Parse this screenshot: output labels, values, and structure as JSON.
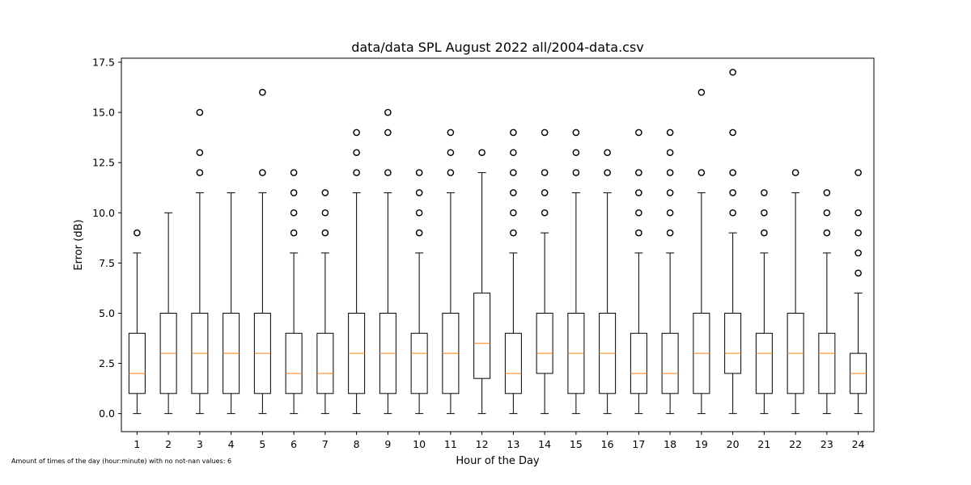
{
  "chart_data": {
    "type": "boxplot",
    "title": "data/data SPL August 2022 all/2004-data.csv",
    "xlabel": "Hour of the Day",
    "ylabel": "Error (dB)",
    "ylim": [
      -0.9,
      17.7
    ],
    "yticks": [
      "0.0",
      "2.5",
      "5.0",
      "7.5",
      "10.0",
      "12.5",
      "15.0",
      "17.5"
    ],
    "ytick_values": [
      0,
      2.5,
      5,
      7.5,
      10,
      12.5,
      15,
      17.5
    ],
    "categories": [
      "1",
      "2",
      "3",
      "4",
      "5",
      "6",
      "7",
      "8",
      "9",
      "10",
      "11",
      "12",
      "13",
      "14",
      "15",
      "16",
      "17",
      "18",
      "19",
      "20",
      "21",
      "22",
      "23",
      "24"
    ],
    "median_color": "#ff7f0e",
    "box_color": "#000000",
    "grid": false,
    "boxes": [
      {
        "whislo": 0,
        "q1": 1,
        "med": 2,
        "q3": 4,
        "whishi": 8,
        "fliers": [
          9
        ]
      },
      {
        "whislo": 0,
        "q1": 1,
        "med": 3,
        "q3": 5,
        "whishi": 10,
        "fliers": []
      },
      {
        "whislo": 0,
        "q1": 1,
        "med": 3,
        "q3": 5,
        "whishi": 11,
        "fliers": [
          12,
          13,
          15
        ]
      },
      {
        "whislo": 0,
        "q1": 1,
        "med": 3,
        "q3": 5,
        "whishi": 11,
        "fliers": []
      },
      {
        "whislo": 0,
        "q1": 1,
        "med": 3,
        "q3": 5,
        "whishi": 11,
        "fliers": [
          12,
          16
        ]
      },
      {
        "whislo": 0,
        "q1": 1,
        "med": 2,
        "q3": 4,
        "whishi": 8,
        "fliers": [
          9,
          10,
          11,
          12
        ]
      },
      {
        "whislo": 0,
        "q1": 1,
        "med": 2,
        "q3": 4,
        "whishi": 8,
        "fliers": [
          9,
          10,
          11
        ]
      },
      {
        "whislo": 0,
        "q1": 1,
        "med": 3,
        "q3": 5,
        "whishi": 11,
        "fliers": [
          12,
          13,
          14
        ]
      },
      {
        "whislo": 0,
        "q1": 1,
        "med": 3,
        "q3": 5,
        "whishi": 11,
        "fliers": [
          12,
          14,
          15
        ]
      },
      {
        "whislo": 0,
        "q1": 1,
        "med": 3,
        "q3": 4,
        "whishi": 8,
        "fliers": [
          9,
          10,
          11,
          12
        ]
      },
      {
        "whislo": 0,
        "q1": 1,
        "med": 3,
        "q3": 5,
        "whishi": 11,
        "fliers": [
          12,
          13,
          14
        ]
      },
      {
        "whislo": 0,
        "q1": 1.75,
        "med": 3.5,
        "q3": 6,
        "whishi": 12,
        "fliers": [
          13
        ]
      },
      {
        "whislo": 0,
        "q1": 1,
        "med": 2,
        "q3": 4,
        "whishi": 8,
        "fliers": [
          9,
          10,
          11,
          12,
          13,
          14
        ]
      },
      {
        "whislo": 0,
        "q1": 2,
        "med": 3,
        "q3": 5,
        "whishi": 9,
        "fliers": [
          10,
          11,
          12,
          14
        ]
      },
      {
        "whislo": 0,
        "q1": 1,
        "med": 3,
        "q3": 5,
        "whishi": 11,
        "fliers": [
          12,
          13,
          14
        ]
      },
      {
        "whislo": 0,
        "q1": 1,
        "med": 3,
        "q3": 5,
        "whishi": 11,
        "fliers": [
          12,
          13
        ]
      },
      {
        "whislo": 0,
        "q1": 1,
        "med": 2,
        "q3": 4,
        "whishi": 8,
        "fliers": [
          9,
          10,
          11,
          12,
          14
        ]
      },
      {
        "whislo": 0,
        "q1": 1,
        "med": 2,
        "q3": 4,
        "whishi": 8,
        "fliers": [
          9,
          10,
          11,
          12,
          13,
          14
        ]
      },
      {
        "whislo": 0,
        "q1": 1,
        "med": 3,
        "q3": 5,
        "whishi": 11,
        "fliers": [
          12,
          16
        ]
      },
      {
        "whislo": 0,
        "q1": 2,
        "med": 3,
        "q3": 5,
        "whishi": 9,
        "fliers": [
          10,
          11,
          12,
          14,
          17
        ]
      },
      {
        "whislo": 0,
        "q1": 1,
        "med": 3,
        "q3": 4,
        "whishi": 8,
        "fliers": [
          9,
          10,
          11
        ]
      },
      {
        "whislo": 0,
        "q1": 1,
        "med": 3,
        "q3": 5,
        "whishi": 11,
        "fliers": [
          12
        ]
      },
      {
        "whislo": 0,
        "q1": 1,
        "med": 3,
        "q3": 4,
        "whishi": 8,
        "fliers": [
          9,
          10,
          11
        ]
      },
      {
        "whislo": 0,
        "q1": 1,
        "med": 2,
        "q3": 3,
        "whishi": 6,
        "fliers": [
          7,
          8,
          9,
          10,
          12
        ]
      }
    ]
  },
  "footnote": "Amount of times of the day (hour:minute) with no not-nan values: 6"
}
